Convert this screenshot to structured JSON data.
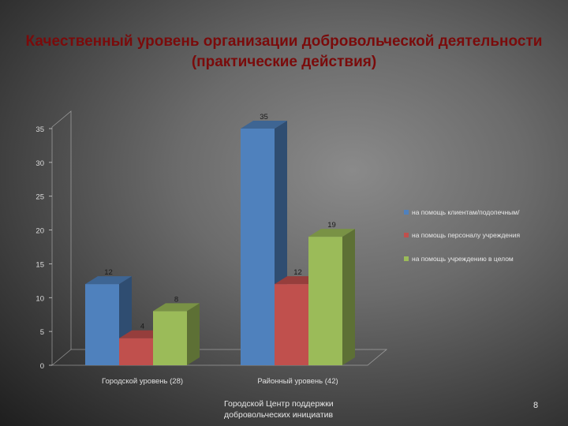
{
  "slide": {
    "title": "Качественный уровень организации добровольческой деятельности (практические действия)",
    "footer": "Городской Центр поддержки добровольческих инициатив",
    "page_number": "8"
  },
  "chart_data": {
    "type": "bar",
    "title": "",
    "categories": [
      "Городской уровень (28)",
      "Районный уровень (42)"
    ],
    "series": [
      {
        "name": "на помощь клиентам/подопечным/",
        "values": [
          12,
          35
        ],
        "color": "#4f81bd"
      },
      {
        "name": "на помощь персоналу учреждения",
        "values": [
          4,
          12
        ],
        "color": "#c0504d"
      },
      {
        "name": "на помощь учреждению в целом",
        "values": [
          8,
          19
        ],
        "color": "#9bbb59"
      }
    ],
    "ylim": [
      0,
      35
    ],
    "yticks": [
      0,
      5,
      10,
      15,
      20,
      25,
      30,
      35
    ],
    "grid": false,
    "legend_position": "right",
    "data_labels": true
  }
}
